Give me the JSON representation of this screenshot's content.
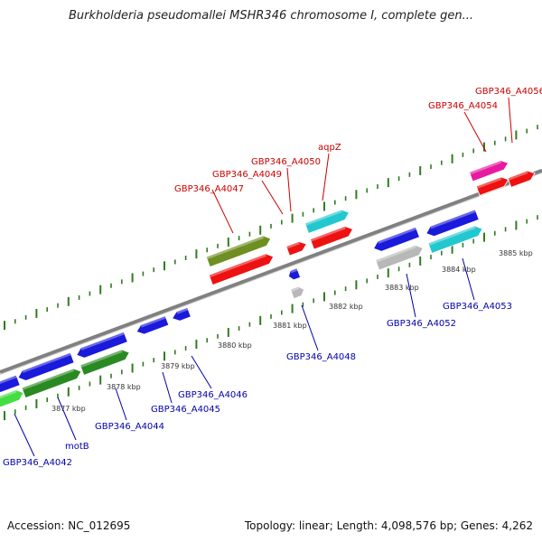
{
  "title": "Burkholderia pseudomallei MSHR346 chromosome I, complete gen...",
  "footer": {
    "accession": "Accession: NC_012695",
    "summary": "Topology: linear; Length: 4,098,576 bp; Genes: 4,262"
  },
  "colors": {
    "backbone": "#808080",
    "tick": "#2e7d1e",
    "label_top": "#cc0000",
    "label_bottom": "#0000aa",
    "blue": "#1a1adb",
    "red": "#ee1111",
    "olive": "#6f8f22",
    "cyan": "#22c8d0",
    "green": "#2a8a22",
    "lightgreen": "#44dd44",
    "gray": "#b8b8b8",
    "magenta": "#e81aa0"
  },
  "scale": {
    "unit": "kbp",
    "ticks": [
      "3877 kbp",
      "3878 kbp",
      "3879 kbp",
      "3880 kbp",
      "3881 kbp",
      "3882 kbp",
      "3883 kbp",
      "3884 kbp",
      "3885 kbp"
    ]
  },
  "top_labels": [
    "GBP346_A4047",
    "GBP346_A4049",
    "GBP346_A4050",
    "aqpZ",
    "GBP346_A4054",
    "GBP346_A4056"
  ],
  "bottom_labels": [
    "GBP346_A4042",
    "motB",
    "GBP346_A4044",
    "GBP346_A4045",
    "GBP346_A4046",
    "GBP346_A4048",
    "GBP346_A4052",
    "GBP346_A4053"
  ]
}
